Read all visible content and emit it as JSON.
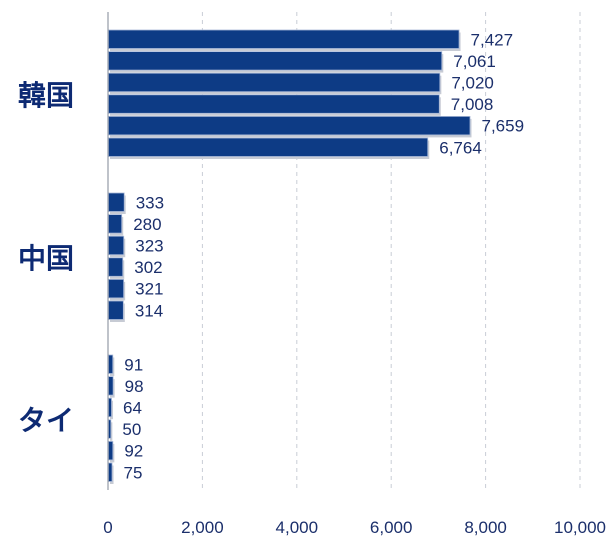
{
  "chart_data": {
    "type": "bar",
    "orientation": "horizontal",
    "title": "",
    "xlabel": "",
    "ylabel": "",
    "xlim": [
      0,
      10000
    ],
    "x_ticks": [
      0,
      2000,
      4000,
      6000,
      8000,
      10000
    ],
    "x_tick_labels": [
      "0",
      "2,000",
      "4,000",
      "6,000",
      "8,000",
      "10,000"
    ],
    "grid": "vertical dashed",
    "legend": "none",
    "bar_color": "#0d3b85",
    "groups": [
      {
        "category": "韓国",
        "values": [
          7427,
          7061,
          7020,
          7008,
          7659,
          6764
        ],
        "labels": [
          "7,427",
          "7,061",
          "7,020",
          "7,008",
          "7,659",
          "6,764"
        ]
      },
      {
        "category": "中国",
        "values": [
          333,
          280,
          323,
          302,
          321,
          314
        ],
        "labels": [
          "333",
          "280",
          "323",
          "302",
          "321",
          "314"
        ]
      },
      {
        "category": "タイ",
        "values": [
          91,
          98,
          64,
          50,
          92,
          75
        ],
        "labels": [
          "91",
          "98",
          "64",
          "50",
          "92",
          "75"
        ]
      }
    ]
  }
}
